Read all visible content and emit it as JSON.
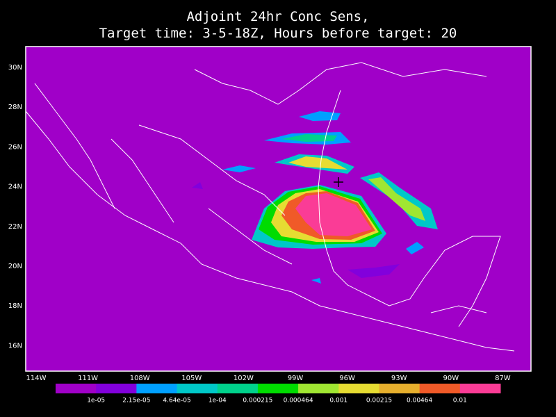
{
  "map": {
    "title": [
      "Adjoint 24hr Conc Sens,",
      "Target time: 3-5-18Z, Hours before target: 20"
    ],
    "lat_labels": [
      "30N",
      "28N",
      "26N",
      "24N",
      "22N",
      "20N",
      "18N",
      "16N"
    ],
    "lon_labels": [
      "114W",
      "111W",
      "108W",
      "105W",
      "102W",
      "99W",
      "96W",
      "93W",
      "90W",
      "87W"
    ],
    "background_color": "#a000c8",
    "colorbar": {
      "colors": [
        "#a000c8",
        "#8200dc",
        "#00a0ff",
        "#00c8c8",
        "#00d28c",
        "#00dc00",
        "#a0e632",
        "#e6dc32",
        "#e6af2d",
        "#f05a28",
        "#fa3c96"
      ],
      "labels": [
        "1e-05",
        "2.15e-05",
        "4.64e-05",
        "1e-04",
        "0.000215",
        "0.000464",
        "0.001",
        "0.00215",
        "0.00464",
        "0.01"
      ]
    }
  }
}
